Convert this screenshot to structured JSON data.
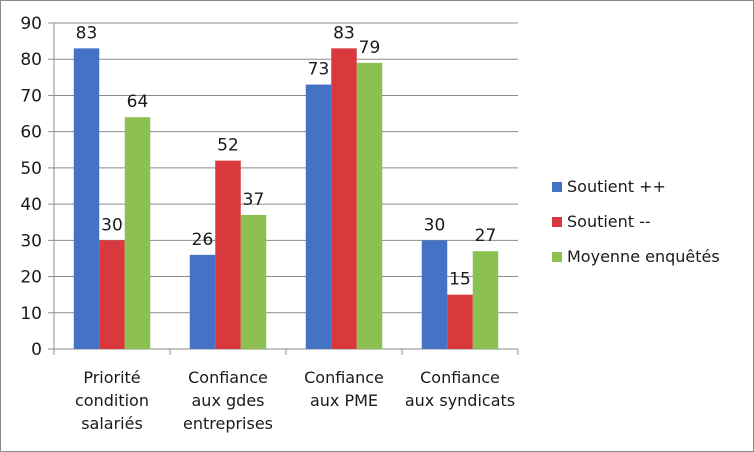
{
  "chart_data": {
    "type": "bar",
    "categories": [
      [
        "Priorité",
        "condition",
        "salariés"
      ],
      [
        "Confiance",
        "aux gdes",
        "entreprises"
      ],
      [
        "Confiance",
        "aux PME"
      ],
      [
        "Confiance",
        "aux syndicats"
      ]
    ],
    "series": [
      {
        "name": "Soutient ++",
        "color": "#4472C4",
        "values": [
          83,
          26,
          73,
          30
        ]
      },
      {
        "name": "Soutient --",
        "color": "#D9383C",
        "values": [
          30,
          52,
          83,
          15
        ]
      },
      {
        "name": "Moyenne enquêtés",
        "color": "#8CC152",
        "values": [
          64,
          37,
          79,
          27
        ]
      }
    ],
    "ylim": [
      0,
      90
    ],
    "yticks": [
      0,
      10,
      20,
      30,
      40,
      50,
      60,
      70,
      80,
      90
    ],
    "grid": true,
    "legend_position": "right",
    "data_labels": true
  }
}
